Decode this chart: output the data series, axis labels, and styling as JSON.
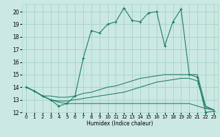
{
  "xlabel": "Humidex (Indice chaleur)",
  "background_color": "#cbe8e3",
  "grid_color": "#a8d5cc",
  "line_color": "#1a7a65",
  "xlim": [
    -0.5,
    23.5
  ],
  "ylim": [
    12.0,
    20.6
  ],
  "xticks": [
    0,
    1,
    2,
    3,
    4,
    5,
    6,
    7,
    8,
    9,
    10,
    11,
    12,
    13,
    14,
    15,
    16,
    17,
    18,
    19,
    20,
    21,
    22,
    23
  ],
  "yticks": [
    12,
    13,
    14,
    15,
    16,
    17,
    18,
    19,
    20
  ],
  "series_main": [
    14.0,
    13.7,
    13.3,
    13.0,
    12.5,
    12.7,
    13.3,
    16.3,
    18.5,
    18.3,
    19.0,
    19.2,
    20.3,
    19.3,
    19.2,
    19.9,
    20.0,
    17.3,
    19.2,
    20.2,
    15.0,
    14.8,
    12.0,
    12.1
  ],
  "series_upper": [
    14.0,
    13.7,
    13.3,
    13.3,
    13.2,
    13.2,
    13.3,
    13.5,
    13.6,
    13.8,
    14.0,
    14.1,
    14.3,
    14.5,
    14.7,
    14.8,
    14.9,
    15.0,
    15.0,
    15.0,
    15.0,
    15.0,
    12.5,
    12.2
  ],
  "series_lower": [
    14.0,
    13.7,
    13.3,
    13.0,
    12.8,
    12.7,
    12.7,
    12.7,
    12.7,
    12.7,
    12.7,
    12.7,
    12.7,
    12.7,
    12.7,
    12.7,
    12.7,
    12.7,
    12.7,
    12.7,
    12.7,
    12.5,
    12.3,
    12.2
  ],
  "series_mid": [
    14.0,
    13.7,
    13.3,
    13.0,
    12.9,
    12.9,
    13.0,
    13.1,
    13.2,
    13.3,
    13.4,
    13.5,
    13.6,
    13.8,
    14.0,
    14.2,
    14.4,
    14.5,
    14.6,
    14.7,
    14.7,
    14.5,
    12.4,
    12.2
  ]
}
